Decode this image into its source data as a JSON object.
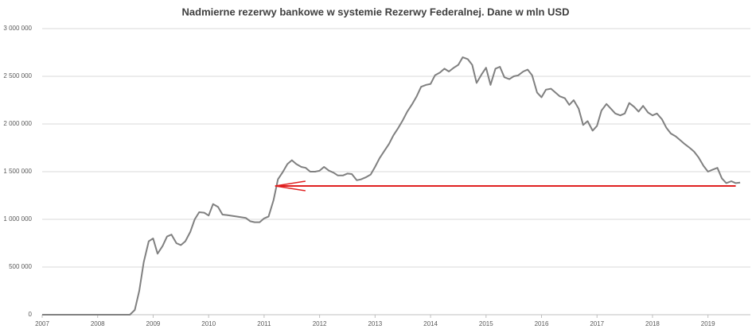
{
  "chart_data": {
    "type": "line",
    "title": "Nadmierne rezerwy bankowe w systemie Rezerwy Federalnej. Dane w mln USD",
    "x": [
      2007.0,
      2008.58,
      2008.67,
      2008.75,
      2008.83,
      2008.92,
      2009.0,
      2009.08,
      2009.17,
      2009.25,
      2009.33,
      2009.42,
      2009.5,
      2009.58,
      2009.67,
      2009.75,
      2009.83,
      2009.92,
      2010.0,
      2010.08,
      2010.17,
      2010.25,
      2010.33,
      2010.5,
      2010.67,
      2010.75,
      2010.83,
      2010.92,
      2011.0,
      2011.08,
      2011.17,
      2011.25,
      2011.33,
      2011.42,
      2011.5,
      2011.58,
      2011.67,
      2011.75,
      2011.83,
      2011.92,
      2012.0,
      2012.08,
      2012.17,
      2012.25,
      2012.33,
      2012.42,
      2012.5,
      2012.58,
      2012.67,
      2012.75,
      2012.83,
      2012.92,
      2013.0,
      2013.08,
      2013.17,
      2013.25,
      2013.33,
      2013.42,
      2013.5,
      2013.58,
      2013.67,
      2013.75,
      2013.83,
      2013.92,
      2014.0,
      2014.08,
      2014.17,
      2014.25,
      2014.33,
      2014.42,
      2014.5,
      2014.58,
      2014.67,
      2014.75,
      2014.83,
      2014.92,
      2015.0,
      2015.08,
      2015.17,
      2015.25,
      2015.33,
      2015.42,
      2015.5,
      2015.58,
      2015.67,
      2015.75,
      2015.83,
      2015.92,
      2016.0,
      2016.08,
      2016.17,
      2016.25,
      2016.33,
      2016.42,
      2016.5,
      2016.58,
      2016.67,
      2016.75,
      2016.83,
      2016.92,
      2017.0,
      2017.08,
      2017.17,
      2017.25,
      2017.33,
      2017.42,
      2017.5,
      2017.58,
      2017.67,
      2017.75,
      2017.83,
      2017.92,
      2018.0,
      2018.08,
      2018.17,
      2018.25,
      2018.33,
      2018.42,
      2018.5,
      2018.58,
      2018.67,
      2018.75,
      2018.83,
      2018.92,
      2019.0,
      2019.08,
      2019.17,
      2019.25,
      2019.33,
      2019.42,
      2019.5,
      2019.58
    ],
    "values": [
      0,
      0,
      50000,
      250000,
      550000,
      770000,
      800000,
      640000,
      720000,
      820000,
      840000,
      750000,
      730000,
      770000,
      870000,
      1000000,
      1075000,
      1070000,
      1040000,
      1160000,
      1130000,
      1050000,
      1045000,
      1030000,
      1015000,
      980000,
      970000,
      970000,
      1010000,
      1030000,
      1200000,
      1420000,
      1490000,
      1580000,
      1620000,
      1580000,
      1550000,
      1540000,
      1500000,
      1500000,
      1510000,
      1550000,
      1510000,
      1490000,
      1460000,
      1460000,
      1480000,
      1475000,
      1410000,
      1420000,
      1440000,
      1470000,
      1550000,
      1640000,
      1720000,
      1790000,
      1880000,
      1960000,
      2040000,
      2130000,
      2210000,
      2290000,
      2390000,
      2410000,
      2420000,
      2510000,
      2540000,
      2580000,
      2550000,
      2590000,
      2620000,
      2700000,
      2680000,
      2620000,
      2430000,
      2520000,
      2590000,
      2410000,
      2580000,
      2600000,
      2490000,
      2470000,
      2500000,
      2510000,
      2550000,
      2570000,
      2510000,
      2330000,
      2280000,
      2360000,
      2370000,
      2330000,
      2290000,
      2270000,
      2200000,
      2250000,
      2160000,
      1990000,
      2030000,
      1930000,
      1980000,
      2140000,
      2210000,
      2160000,
      2110000,
      2090000,
      2110000,
      2220000,
      2180000,
      2130000,
      2190000,
      2120000,
      2090000,
      2110000,
      2050000,
      1960000,
      1900000,
      1870000,
      1830000,
      1790000,
      1750000,
      1710000,
      1650000,
      1560000,
      1500000,
      1520000,
      1540000,
      1430000,
      1380000,
      1400000,
      1380000,
      1385000
    ],
    "color": "#808080",
    "xlim": [
      2007,
      2019.65
    ],
    "xticks": [
      2007,
      2008,
      2009,
      2010,
      2011,
      2012,
      2013,
      2014,
      2015,
      2016,
      2017,
      2018,
      2019
    ],
    "ylim": [
      0,
      3000000
    ],
    "yticks": [
      {
        "value": 0,
        "label": "0"
      },
      {
        "value": 500000,
        "label": "500 000"
      },
      {
        "value": 1000000,
        "label": "1 000 000"
      },
      {
        "value": 1500000,
        "label": "1 500 000"
      },
      {
        "value": 2000000,
        "label": "2 000 000"
      },
      {
        "value": 2500000,
        "label": "2 500 000"
      },
      {
        "value": 3000000,
        "label": "3 000 000"
      }
    ],
    "grid": true,
    "arrow": {
      "value": 1350000,
      "x": [
        2011.2,
        2019.5
      ],
      "color": "#e02020"
    }
  }
}
